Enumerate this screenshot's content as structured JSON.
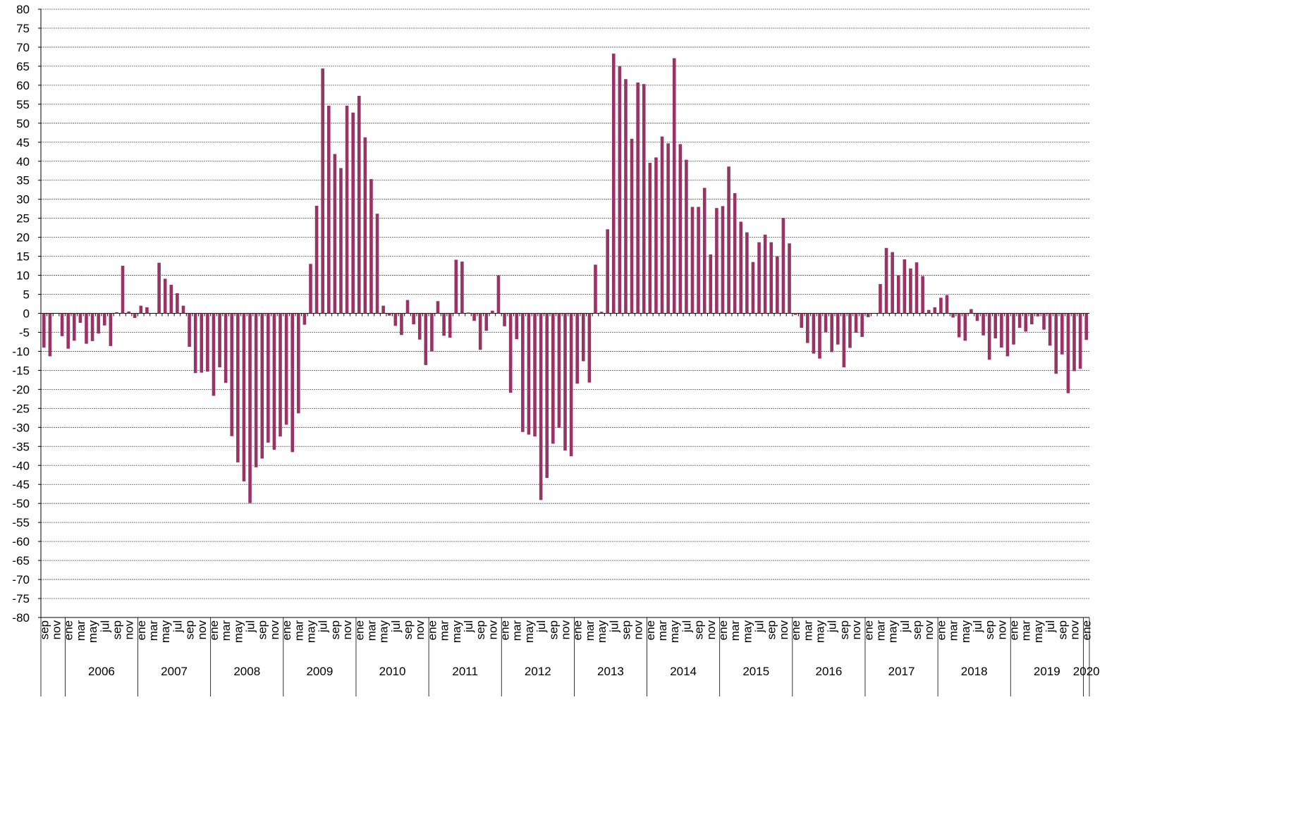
{
  "chart_data": {
    "type": "bar",
    "color": "#993366",
    "grid": true,
    "ylim": [
      -80,
      80
    ],
    "yticks": [
      80,
      75,
      70,
      65,
      60,
      55,
      50,
      45,
      40,
      35,
      30,
      25,
      20,
      15,
      10,
      5,
      0,
      -5,
      -10,
      -15,
      -20,
      -25,
      -30,
      -35,
      -40,
      -45,
      -50,
      -55,
      -60,
      -65,
      -70,
      -75,
      -80
    ],
    "categories": [
      "sep",
      null,
      "nov",
      null,
      "ene",
      null,
      "mar",
      null,
      "may",
      null,
      "jul",
      null,
      "sep",
      null,
      "nov",
      null,
      "ene",
      null,
      "mar",
      null,
      "may",
      null,
      "jul",
      null,
      "sep",
      null,
      "nov",
      null,
      "ene",
      null,
      "mar",
      null,
      "may",
      null,
      "jul",
      null,
      "sep",
      null,
      "nov",
      null,
      "ene",
      null,
      "mar",
      null,
      "may",
      null,
      "jul",
      null,
      "sep",
      null,
      "nov",
      null,
      "ene",
      null,
      "mar",
      null,
      "may",
      null,
      "jul",
      null,
      "sep",
      null,
      "nov",
      null,
      "ene",
      null,
      "mar",
      null,
      "may",
      null,
      "jul",
      null,
      "sep",
      null,
      "nov",
      null,
      "ene",
      null,
      "mar",
      null,
      "may",
      null,
      "jul",
      null,
      "sep",
      null,
      "nov",
      null,
      "ene",
      null,
      "mar",
      null,
      "may",
      null,
      "jul",
      null,
      "sep",
      null,
      "nov",
      null,
      "ene",
      null,
      "mar",
      null,
      "may",
      null,
      "jul",
      null,
      "sep",
      null,
      "nov",
      null,
      "ene",
      null,
      "mar",
      null,
      "may",
      null,
      "jul",
      null,
      "sep",
      null,
      "nov",
      null,
      "ene",
      null,
      "mar",
      null,
      "may",
      null,
      "jul",
      null,
      "sep",
      null,
      "nov",
      null,
      "ene",
      null,
      "mar",
      null,
      "may",
      null,
      "jul",
      null,
      "sep",
      null,
      "nov",
      null,
      "ene",
      null,
      "mar",
      null,
      "may",
      null,
      "jul",
      null,
      "sep",
      null,
      "nov",
      null,
      "ene",
      null,
      "mar",
      null,
      "may",
      null,
      "jul",
      null,
      "sep",
      null,
      "nov",
      null,
      "ene"
    ],
    "years": [
      null,
      "2006",
      "2007",
      "2008",
      "2009",
      "2010",
      "2011",
      "2012",
      "2013",
      "2014",
      "2015",
      "2016",
      "2017",
      "2018",
      "2019",
      "2020"
    ],
    "values": [
      -9,
      -11.3,
      0,
      -6,
      -9.3,
      -7.2,
      -2.5,
      -8,
      -7.3,
      -5.3,
      -3.2,
      -8.6,
      0.3,
      12.5,
      0.5,
      -1.2,
      2,
      1.6,
      0,
      13.3,
      9.1,
      7.5,
      5.3,
      2,
      -8.8,
      -15.7,
      -15.6,
      -15.3,
      -21.7,
      -14.2,
      -18.3,
      -32.3,
      -39.2,
      -44.2,
      -49.9,
      -40.5,
      -38.2,
      -34,
      -35.9,
      -32.4,
      -29.3,
      -36.5,
      -26.3,
      -3,
      13,
      28.3,
      64.4,
      54.6,
      41.9,
      38.2,
      54.6,
      52.8,
      57.2,
      46.3,
      35.3,
      26.2,
      2,
      -0.6,
      -3.3,
      -5.7,
      3.5,
      -2.9,
      -6.9,
      -13.6,
      -10,
      3.2,
      -5.9,
      -6.4,
      14.1,
      13.6,
      0.2,
      -2,
      -9.6,
      -4.6,
      0.7,
      10,
      -3.4,
      -20.9,
      -6.8,
      -31.2,
      -31.9,
      -32.4,
      -49.1,
      -43.3,
      -34.3,
      -30.1,
      -36.1,
      -37.6,
      -18.5,
      -12.6,
      -18.2,
      12.8,
      0.4,
      22.1,
      68.3,
      65,
      61.6,
      45.9,
      60.7,
      60.3,
      39.6,
      41,
      46.5,
      44.7,
      67.1,
      44.5,
      40.4,
      28,
      28,
      33,
      15.5,
      27.7,
      28.2,
      38.6,
      31.6,
      24.1,
      21.3,
      13.5,
      18.7,
      20.7,
      18.7,
      15,
      25.1,
      18.4,
      -0.4,
      -3.8,
      -7.8,
      -10.6,
      -11.9,
      -5,
      -10.2,
      -8.2,
      -14.2,
      -9.1,
      -5.1,
      -6.2,
      -1,
      0,
      7.7,
      17.2,
      16.1,
      10,
      14.2,
      11.8,
      13.4,
      9.8,
      0.9,
      1.6,
      4.1,
      4.8,
      -1.1,
      -6.3,
      -7.2,
      1.1,
      -2,
      -5.8,
      -12.2,
      -6.6,
      -9,
      -11.3,
      -8.2,
      -3.8,
      -4.8,
      -2.9,
      -0.8,
      -4.3,
      -8.5,
      -15.9,
      -10.8,
      -21,
      -15.2,
      -14.6,
      -7
    ]
  }
}
